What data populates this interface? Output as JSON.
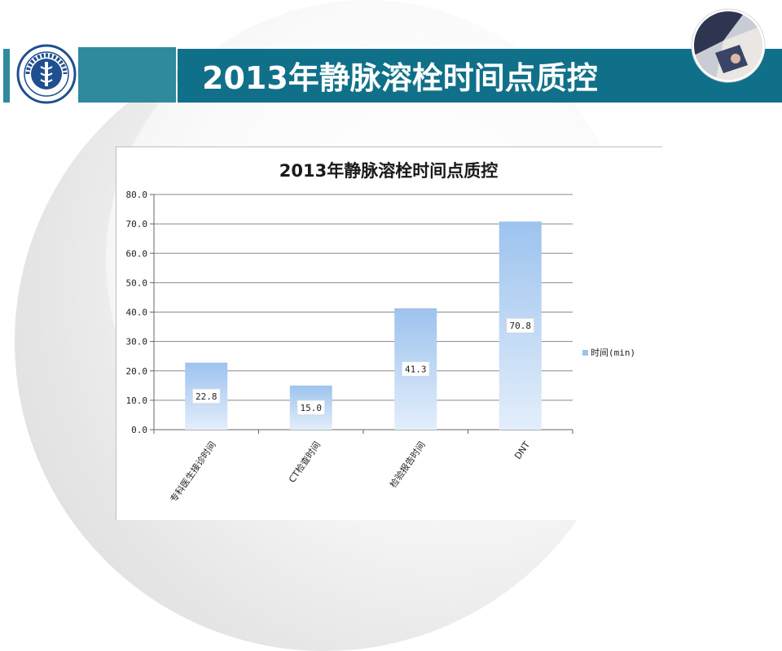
{
  "page": {
    "title": "2013年静脉溶栓时间点质控",
    "logo_icon": "hospital-seal-icon",
    "avatar_icon": "doctor-photo-icon",
    "accent_color": "#10708a",
    "accent_light": "#2f8a9e"
  },
  "chart_data": {
    "type": "bar",
    "title": "2013年静脉溶栓时间点质控",
    "categories": [
      "专科医生接诊时间",
      "CT检查时间",
      "检验报告时间",
      "DNT"
    ],
    "series": [
      {
        "name": "时间(min)",
        "values": [
          22.8,
          15.0,
          41.3,
          70.8
        ],
        "color": "#9dc3ee"
      }
    ],
    "data_labels": [
      "22.8",
      "15.0",
      "41.3",
      "70.8"
    ],
    "ylim": [
      0,
      80
    ],
    "yticks": [
      "0.0",
      "10.0",
      "20.0",
      "30.0",
      "40.0",
      "50.0",
      "60.0",
      "70.0",
      "80.0"
    ],
    "ytick_values": [
      0,
      10,
      20,
      30,
      40,
      50,
      60,
      70,
      80
    ],
    "grid": true,
    "legend": "right"
  }
}
